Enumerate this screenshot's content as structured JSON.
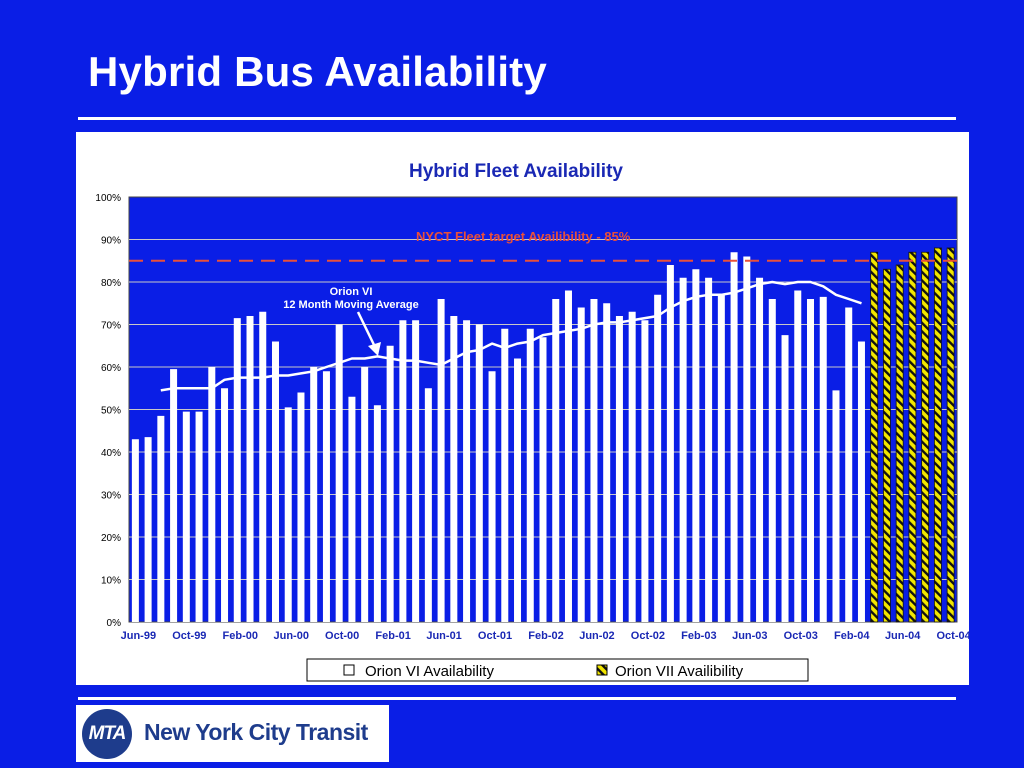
{
  "slide": {
    "title": "Hybrid Bus Availability"
  },
  "logo": {
    "mark": "MTA",
    "name": "New York City Transit"
  },
  "colors": {
    "background": "#0A1EE6",
    "plot_area": "#0A1EE6",
    "orion_vi_bar": "#FFFFFF",
    "orion_vii_bar": "#F2E600",
    "target_line": "#E8503A",
    "moving_average": "#FFFFFF",
    "chart_title": "#1A28B4"
  },
  "chart_data": {
    "type": "bar",
    "title": "Hybrid Fleet Availability",
    "ylim": [
      0,
      100
    ],
    "yticks": [
      "0%",
      "10%",
      "20%",
      "30%",
      "40%",
      "50%",
      "60%",
      "70%",
      "80%",
      "90%",
      "100%"
    ],
    "ytick_values": [
      0,
      10,
      20,
      30,
      40,
      50,
      60,
      70,
      80,
      90,
      100
    ],
    "categories": [
      "Jun-99",
      "Jul-99",
      "Aug-99",
      "Sep-99",
      "Oct-99",
      "Nov-99",
      "Dec-99",
      "Jan-00",
      "Feb-00",
      "Mar-00",
      "Apr-00",
      "May-00",
      "Jun-00",
      "Jul-00",
      "Aug-00",
      "Sep-00",
      "Oct-00",
      "Nov-00",
      "Dec-00",
      "Jan-01",
      "Feb-01",
      "Mar-01",
      "Apr-01",
      "May-01",
      "Jun-01",
      "Jul-01",
      "Aug-01",
      "Sep-01",
      "Oct-01",
      "Nov-01",
      "Dec-01",
      "Jan-02",
      "Feb-02",
      "Mar-02",
      "Apr-02",
      "May-02",
      "Jun-02",
      "Jul-02",
      "Aug-02",
      "Sep-02",
      "Oct-02",
      "Nov-02",
      "Dec-02",
      "Jan-03",
      "Feb-03",
      "Mar-03",
      "Apr-03",
      "May-03",
      "Jun-03",
      "Jul-03",
      "Aug-03",
      "Sep-03",
      "Oct-03",
      "Nov-03",
      "Dec-03",
      "Jan-04",
      "Feb-04",
      "Mar-04",
      "Apr-04",
      "May-04",
      "Jun-04",
      "Jul-04",
      "Aug-04",
      "Sep-04",
      "Oct-04"
    ],
    "xtick_labels": [
      "Jun-99",
      "Oct-99",
      "Feb-00",
      "Jun-00",
      "Oct-00",
      "Feb-01",
      "Jun-01",
      "Oct-01",
      "Feb-02",
      "Jun-02",
      "Oct-02",
      "Feb-03",
      "Jun-03",
      "Oct-03",
      "Feb-04",
      "Jun-04",
      "Oct-04"
    ],
    "xtick_every": 4,
    "grid": "horizontal",
    "legend_position": "bottom",
    "series": [
      {
        "name": "Orion VI Availability",
        "pattern": "solid",
        "values": [
          43,
          43.5,
          48.5,
          59.5,
          49.5,
          49.5,
          60,
          55,
          71.5,
          72,
          73,
          66,
          50.5,
          54,
          60,
          59,
          70,
          53,
          60,
          51,
          65,
          71,
          71,
          55,
          76,
          72,
          71,
          70,
          59,
          69,
          62,
          69,
          67,
          76,
          78,
          74,
          76,
          75,
          72,
          73,
          71,
          77,
          84,
          81,
          83,
          81,
          77,
          87,
          86,
          81,
          76,
          67.5,
          78,
          76,
          76.5,
          54.5,
          74,
          66,
          null,
          null,
          null,
          null,
          null,
          null,
          null
        ]
      },
      {
        "name": "Orion VII Availibility",
        "pattern": "hatched",
        "values": [
          null,
          null,
          null,
          null,
          null,
          null,
          null,
          null,
          null,
          null,
          null,
          null,
          null,
          null,
          null,
          null,
          null,
          null,
          null,
          null,
          null,
          null,
          null,
          null,
          null,
          null,
          null,
          null,
          null,
          null,
          null,
          null,
          null,
          null,
          null,
          null,
          null,
          null,
          null,
          null,
          null,
          null,
          null,
          null,
          null,
          null,
          null,
          null,
          null,
          null,
          null,
          null,
          null,
          null,
          null,
          null,
          null,
          null,
          87,
          83,
          84,
          87,
          87,
          88,
          88
        ]
      }
    ],
    "moving_average": {
      "label_line1": "Orion VI",
      "label_line2": "12 Month Moving Average",
      "values": [
        null,
        null,
        54.5,
        55,
        55,
        55,
        55,
        57,
        57.5,
        57.5,
        57.5,
        58,
        58,
        58.5,
        59,
        60,
        61,
        62,
        62,
        62.5,
        62,
        61.5,
        61.5,
        61,
        60.5,
        62,
        63.5,
        64,
        65.5,
        64.5,
        65.5,
        66,
        67.5,
        68,
        68.5,
        69,
        70,
        70.5,
        70.5,
        71,
        71.5,
        72,
        74,
        75.5,
        76.5,
        77,
        77,
        77.5,
        78.5,
        79.5,
        80,
        79.5,
        80,
        80,
        79,
        77,
        76,
        75,
        null,
        null,
        null,
        null,
        null,
        null,
        null
      ]
    },
    "target": {
      "label": "NYCT Fleet target Availibility - 85%",
      "value": 85
    }
  }
}
